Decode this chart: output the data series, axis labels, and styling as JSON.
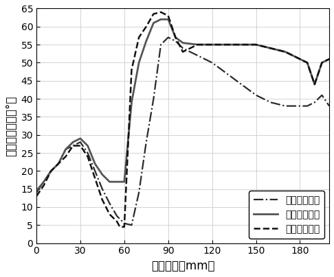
{
  "title": "",
  "xlabel": "探测位置（mm）",
  "ylabel": "磁场偏转角度（°）",
  "xlim": [
    0,
    200
  ],
  "ylim": [
    0,
    65
  ],
  "xticks": [
    0,
    30,
    60,
    90,
    120,
    150,
    180
  ],
  "yticks": [
    0,
    5,
    10,
    15,
    20,
    25,
    30,
    35,
    40,
    45,
    50,
    55,
    60,
    65
  ],
  "grid": true,
  "background_color": "#ffffff",
  "curve1_label": "弹体接触靶板",
  "curve1_style": "-.",
  "curve1_color": "#2a2a2a",
  "curve1_lw": 1.6,
  "curve1_x": [
    0,
    5,
    10,
    15,
    20,
    25,
    30,
    35,
    40,
    45,
    50,
    55,
    60,
    65,
    70,
    75,
    80,
    85,
    90,
    95,
    100,
    110,
    120,
    130,
    140,
    150,
    160,
    170,
    175,
    180,
    185,
    190,
    195,
    200
  ],
  "curve1_y": [
    14,
    17,
    20,
    22,
    26,
    27,
    28,
    25,
    20,
    15,
    11,
    7.5,
    5.5,
    5,
    14,
    28,
    40,
    55,
    57,
    56,
    54,
    52,
    50,
    47,
    44,
    41,
    39,
    38,
    38,
    38,
    38,
    39,
    41,
    38
  ],
  "curve2_label": "靶板位于弹中",
  "curve2_style": "-",
  "curve2_color": "#555555",
  "curve2_lw": 2.0,
  "curve2_x": [
    0,
    5,
    10,
    15,
    20,
    25,
    30,
    35,
    40,
    45,
    50,
    55,
    60,
    65,
    70,
    75,
    80,
    85,
    90,
    95,
    100,
    110,
    120,
    130,
    140,
    150,
    160,
    170,
    175,
    180,
    185,
    190,
    195,
    200
  ],
  "curve2_y": [
    14.5,
    17,
    20,
    22,
    26,
    28,
    29,
    27,
    22,
    19,
    17,
    17,
    17,
    39,
    50,
    56,
    61,
    62,
    62,
    57,
    55.5,
    55,
    55,
    55,
    55,
    55,
    54,
    53,
    52,
    51,
    50,
    44,
    50,
    51
  ],
  "curve3_label": "弹尾脱离靶板",
  "curve3_style": "--",
  "curve3_color": "#111111",
  "curve3_lw": 1.8,
  "curve3_x": [
    0,
    5,
    10,
    15,
    20,
    25,
    30,
    35,
    40,
    45,
    50,
    55,
    57,
    60,
    65,
    70,
    75,
    80,
    85,
    90,
    95,
    100,
    110,
    120,
    130,
    140,
    150,
    160,
    170,
    175,
    180,
    185,
    190,
    195,
    200
  ],
  "curve3_y": [
    13,
    16,
    20,
    22,
    24,
    27,
    27,
    24,
    18,
    12,
    8,
    6,
    4.5,
    4.5,
    48,
    57,
    60,
    63.5,
    64,
    63,
    57,
    53,
    55,
    55,
    55,
    55,
    55,
    54,
    53,
    52,
    51,
    50,
    44,
    50,
    51
  ],
  "legend_loc": "lower right",
  "fontsize_label": 12,
  "fontsize_tick": 10,
  "fontsize_legend": 10,
  "grid_color": "#cccccc",
  "grid_lw": 0.6
}
